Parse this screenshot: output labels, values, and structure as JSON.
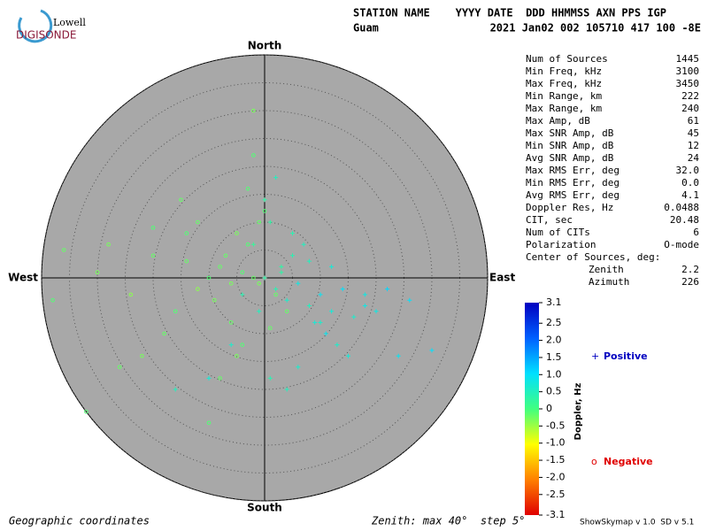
{
  "logo": {
    "top": "Lowell",
    "bottom": "DIGISONDE"
  },
  "header": {
    "columns": "STATION NAME    YYYY DATE  DDD HHMMSS AXN PPS IGP",
    "station": "Guam",
    "values": "2021 Jan02 002 105710 417 100 -8E"
  },
  "parameters": [
    [
      "Num of Sources",
      "1445"
    ],
    [
      "Min Freq, kHz",
      "3100"
    ],
    [
      "Max Freq, kHz",
      "3450"
    ],
    [
      "Min Range, km",
      "222"
    ],
    [
      "Max Range, km",
      "240"
    ],
    [
      "Max Amp, dB",
      "61"
    ],
    [
      "Max SNR Amp, dB",
      "45"
    ],
    [
      "Min SNR Amp, dB",
      "12"
    ],
    [
      "Avg SNR Amp, dB",
      "24"
    ],
    [
      "Max RMS Err, deg",
      "32.0"
    ],
    [
      "Min RMS Err, deg",
      "0.0"
    ],
    [
      "Avg RMS Err, deg",
      "4.1"
    ],
    [
      "Doppler Res, Hz",
      "0.0488"
    ],
    [
      "CIT, sec",
      "20.48"
    ],
    [
      "Num of CITs",
      "6"
    ],
    [
      "Polarization",
      "O-mode"
    ]
  ],
  "center": {
    "title": "Center of Sources, deg:",
    "rows": [
      [
        "Zenith",
        "2.2"
      ],
      [
        "Azimuth",
        "226"
      ]
    ]
  },
  "footer": {
    "left": "Geographic coordinates",
    "middle": "Zenith: max 40°  step 5°",
    "right": "ShowSkymap v 1.0  SD v 5.1"
  },
  "chart_data": {
    "type": "scatter",
    "directions": {
      "north": "North",
      "south": "South",
      "east": "East",
      "west": "West"
    },
    "rlim": [
      0,
      40
    ],
    "rticks": [
      5,
      10,
      15,
      20,
      25,
      30,
      35,
      40
    ],
    "colorbar": {
      "label": "Doppler, Hz",
      "lim": [
        -3.1,
        3.1
      ],
      "colors": [
        "#e00000",
        "#ff8000",
        "#ffff00",
        "#40ff80",
        "#00e0ff",
        "#0060ff",
        "#0000c0"
      ],
      "ticks": [
        3.1,
        2.5,
        {
          "value": 2,
          "label": "2.0"
        },
        1.5,
        {
          "value": 1,
          "label": "1.0"
        },
        0.5,
        0,
        -0.5,
        {
          "value": -1,
          "label": "-1.0"
        },
        -1.5,
        {
          "value": -2,
          "label": "-2.0"
        },
        -2.5,
        -3.1
      ]
    },
    "series": [
      {
        "name": "Positive",
        "marker": "+",
        "color": "#0000c0",
        "x": [
          2,
          4,
          6,
          8,
          10,
          12,
          14,
          16,
          18,
          3,
          5,
          7,
          9,
          11,
          13,
          1,
          -2,
          -4,
          0,
          2,
          20,
          22,
          15,
          6,
          4,
          1,
          3,
          8,
          -6,
          -10,
          -16,
          24,
          30,
          10,
          5,
          -1,
          0,
          12,
          18,
          26
        ],
        "y": [
          -2,
          -4,
          -1,
          -5,
          -3,
          -6,
          -2,
          -7,
          -5,
          2,
          4,
          6,
          -8,
          -10,
          -12,
          10,
          6,
          -3,
          14,
          18,
          -6,
          -2,
          -14,
          -16,
          -20,
          -18,
          1,
          3,
          -12,
          -18,
          -20,
          -14,
          -13,
          -8,
          8,
          -6,
          0,
          2,
          -3,
          -4
        ],
        "doppler": [
          0.4,
          0.6,
          0.8,
          0.5,
          0.9,
          0.7,
          1.0,
          0.6,
          0.8,
          0.3,
          0.4,
          0.5,
          0.7,
          0.9,
          0.6,
          0.3,
          0.2,
          0.4,
          0.3,
          0.5,
          0.8,
          1.1,
          0.7,
          0.6,
          0.5,
          0.4,
          0.3,
          0.5,
          0.6,
          0.7,
          0.5,
          0.9,
          1.0,
          0.6,
          0.4,
          0.5,
          0.3,
          0.7,
          0.8,
          1.0
        ]
      },
      {
        "name": "Negative",
        "marker": "o",
        "color": "#e00000",
        "x": [
          -2,
          -4,
          -6,
          -8,
          -10,
          -12,
          -14,
          -3,
          -5,
          -1,
          0,
          -7,
          -9,
          -16,
          -20,
          -24,
          -30,
          -36,
          -38,
          -18,
          -22,
          -4,
          -6,
          -2,
          2,
          -1,
          -3,
          -12,
          -28,
          -20,
          -8,
          -10,
          -5,
          -26,
          -32,
          4,
          -2,
          -14,
          -15,
          1
        ],
        "y": [
          0,
          1,
          -1,
          2,
          0,
          -2,
          3,
          6,
          8,
          10,
          12,
          4,
          -4,
          -6,
          4,
          -3,
          1,
          5,
          -4,
          -10,
          -14,
          -12,
          -8,
          22,
          -3,
          -1,
          16,
          10,
          6,
          9,
          -18,
          -26,
          -14,
          -16,
          -24,
          -6,
          30,
          8,
          14,
          -9
        ],
        "doppler": [
          -0.2,
          -0.1,
          -0.3,
          -0.2,
          -0.1,
          -0.4,
          -0.2,
          -0.1,
          -0.3,
          -0.2,
          -0.1,
          -0.2,
          -0.3,
          -0.1,
          -0.2,
          -0.4,
          -0.3,
          -0.2,
          -0.1,
          -0.2,
          -0.3,
          -0.1,
          -0.2,
          -0.1,
          -0.2,
          -0.3,
          -0.1,
          -0.2,
          -0.3,
          -0.1,
          -0.2,
          -0.1,
          -0.3,
          -0.2,
          -0.1,
          -0.2,
          -0.3,
          -0.1,
          -0.2,
          -0.2
        ]
      }
    ]
  }
}
